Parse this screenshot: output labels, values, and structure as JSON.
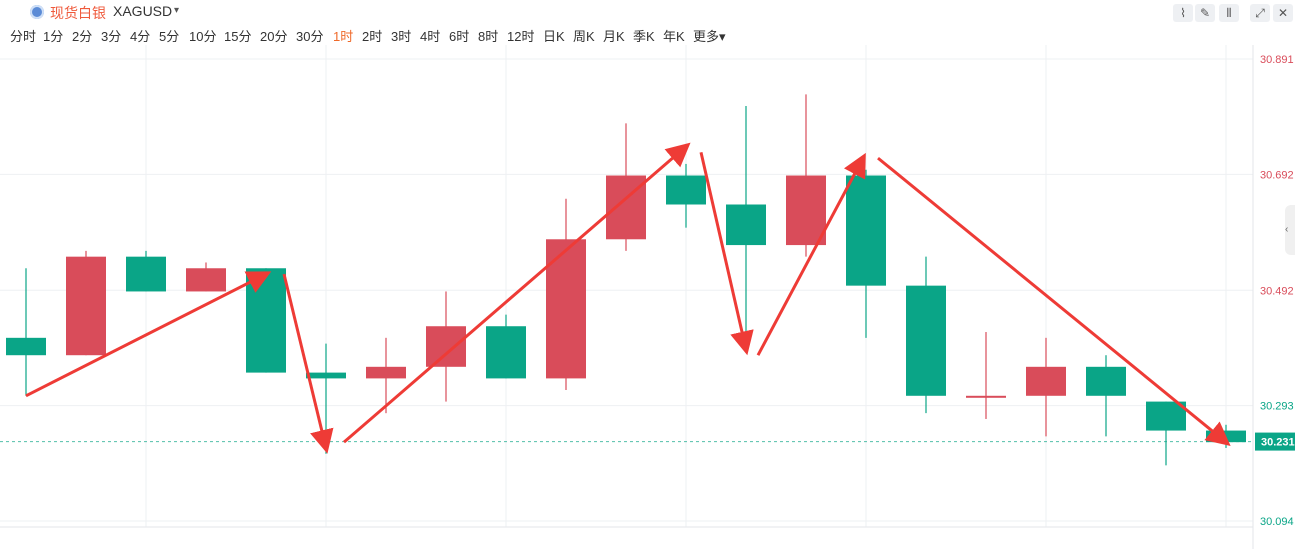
{
  "header": {
    "symbol_name": "现货白银",
    "symbol_code": "XAGUSD",
    "caret": "▾",
    "tools": [
      {
        "icon": "line-chart-icon",
        "glyph": "⌇"
      },
      {
        "icon": "draw-pen-icon",
        "glyph": "✎"
      },
      {
        "icon": "candlestick-icon",
        "glyph": "⫴"
      },
      {
        "icon": "fullscreen-icon",
        "glyph": "⤢"
      },
      {
        "icon": "close-icon",
        "glyph": "✕"
      }
    ]
  },
  "periods": [
    "分时",
    "1分",
    "2分",
    "3分",
    "4分",
    "5分",
    "10分",
    "15分",
    "20分",
    "30分",
    "1时",
    "2时",
    "3时",
    "4时",
    "6时",
    "8时",
    "12时",
    "日K",
    "周K",
    "月K",
    "季K",
    "年K",
    "更多▾"
  ],
  "active_period": "1时",
  "colors": {
    "up": "#d94c5a",
    "down": "#0aa587",
    "arrow": "#ee3b36",
    "grid": "#eef0f3",
    "axis_red": "#d94c5a",
    "axis_green": "#0aa587"
  },
  "chart_data": {
    "type": "candlestick",
    "ylim": [
      30.094,
      30.891
    ],
    "yticks": [
      {
        "value": "30.891",
        "color": "red"
      },
      {
        "value": "30.692",
        "color": "red"
      },
      {
        "value": "30.492",
        "color": "red"
      },
      {
        "value": "30.293",
        "color": "green"
      },
      {
        "value": "30.094",
        "color": "green"
      }
    ],
    "last_price": "30.231",
    "candles": [
      {
        "o": 30.41,
        "h": 30.53,
        "l": 30.31,
        "c": 30.38
      },
      {
        "o": 30.38,
        "h": 30.56,
        "l": 30.38,
        "c": 30.55
      },
      {
        "o": 30.55,
        "h": 30.56,
        "l": 30.49,
        "c": 30.49
      },
      {
        "o": 30.49,
        "h": 30.54,
        "l": 30.49,
        "c": 30.53
      },
      {
        "o": 30.53,
        "h": 30.53,
        "l": 30.35,
        "c": 30.35
      },
      {
        "o": 30.35,
        "h": 30.4,
        "l": 30.21,
        "c": 30.34
      },
      {
        "o": 30.34,
        "h": 30.41,
        "l": 30.28,
        "c": 30.36
      },
      {
        "o": 30.36,
        "h": 30.49,
        "l": 30.3,
        "c": 30.43
      },
      {
        "o": 30.43,
        "h": 30.45,
        "l": 30.34,
        "c": 30.34
      },
      {
        "o": 30.34,
        "h": 30.65,
        "l": 30.32,
        "c": 30.58
      },
      {
        "o": 30.58,
        "h": 30.78,
        "l": 30.56,
        "c": 30.69
      },
      {
        "o": 30.69,
        "h": 30.71,
        "l": 30.6,
        "c": 30.64
      },
      {
        "o": 30.64,
        "h": 30.81,
        "l": 30.39,
        "c": 30.57
      },
      {
        "o": 30.57,
        "h": 30.83,
        "l": 30.55,
        "c": 30.69
      },
      {
        "o": 30.69,
        "h": 30.7,
        "l": 30.41,
        "c": 30.5
      },
      {
        "o": 30.5,
        "h": 30.55,
        "l": 30.28,
        "c": 30.31
      },
      {
        "o": 30.31,
        "h": 30.42,
        "l": 30.27,
        "c": 30.31
      },
      {
        "o": 30.31,
        "h": 30.41,
        "l": 30.24,
        "c": 30.36
      },
      {
        "o": 30.36,
        "h": 30.38,
        "l": 30.24,
        "c": 30.31
      },
      {
        "o": 30.3,
        "h": 30.3,
        "l": 30.19,
        "c": 30.25
      },
      {
        "o": 30.25,
        "h": 30.26,
        "l": 30.22,
        "c": 30.23
      }
    ]
  },
  "arrows": [
    {
      "from": [
        0,
        30.31
      ],
      "to": [
        4,
        30.52
      ]
    },
    {
      "from": [
        4.3,
        30.52
      ],
      "to": [
        5.0,
        30.22
      ]
    },
    {
      "from": [
        5.3,
        30.23
      ],
      "to": [
        11.0,
        30.74
      ]
    },
    {
      "from": [
        11.25,
        30.73
      ],
      "to": [
        12.0,
        30.39
      ]
    },
    {
      "from": [
        12.2,
        30.38
      ],
      "to": [
        13.95,
        30.72
      ]
    },
    {
      "from": [
        14.2,
        30.72
      ],
      "to": [
        20.0,
        30.23
      ]
    }
  ]
}
